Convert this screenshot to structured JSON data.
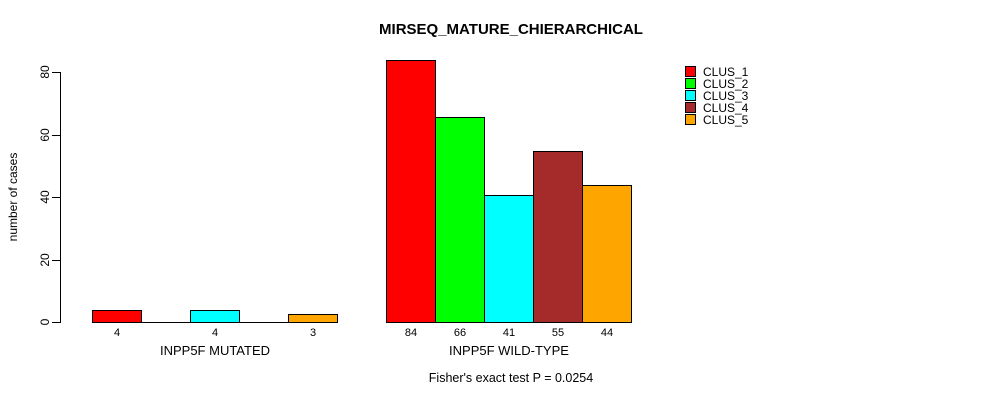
{
  "chart_data": {
    "type": "bar",
    "title": "MIRSEQ_MATURE_CHIERARCHICAL",
    "ylabel": "number of cases",
    "xlabel": "",
    "ylim": [
      0,
      80
    ],
    "yticks": [
      0,
      20,
      40,
      60,
      80
    ],
    "grid": false,
    "legend_position": "top-right",
    "groups": [
      "INPP5F MUTATED",
      "INPP5F WILD-TYPE"
    ],
    "series": [
      {
        "name": "CLUS_1",
        "color": "#FF0000",
        "values": [
          4,
          84
        ]
      },
      {
        "name": "CLUS_2",
        "color": "#00FF00",
        "values": [
          0,
          66
        ]
      },
      {
        "name": "CLUS_3",
        "color": "#00FFFF",
        "values": [
          4,
          41
        ]
      },
      {
        "name": "CLUS_4",
        "color": "#A52A2A",
        "values": [
          0,
          55
        ]
      },
      {
        "name": "CLUS_5",
        "color": "#FFA500",
        "values": [
          3,
          44
        ]
      }
    ],
    "bar_labels": [
      [
        "4",
        "",
        "4",
        "",
        "3"
      ],
      [
        "84",
        "66",
        "41",
        "55",
        "44"
      ]
    ],
    "footnote": "Fisher's exact test P = 0.0254",
    "colors": {
      "background": "#FFFFFF",
      "axis": "#000000",
      "bar_border": "#000000"
    }
  }
}
